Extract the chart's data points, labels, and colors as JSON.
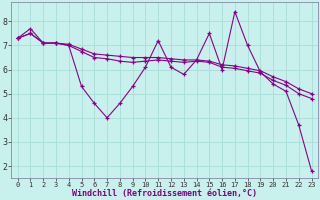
{
  "xlabel": "Windchill (Refroidissement éolien,°C)",
  "x_ticks": [
    0,
    1,
    2,
    3,
    4,
    5,
    6,
    7,
    8,
    9,
    10,
    11,
    12,
    13,
    14,
    15,
    16,
    17,
    18,
    19,
    20,
    21,
    22,
    23
  ],
  "ylim": [
    1.5,
    8.8
  ],
  "xlim": [
    -0.5,
    23.5
  ],
  "yticks": [
    2,
    3,
    4,
    5,
    6,
    7,
    8
  ],
  "line1_x": [
    0,
    1,
    2,
    3,
    4,
    5,
    6,
    7,
    8,
    9,
    10,
    11,
    12,
    13,
    14,
    15,
    16,
    17,
    18,
    19,
    20,
    21,
    22,
    23
  ],
  "line1_y": [
    7.3,
    7.7,
    7.1,
    7.1,
    7.0,
    5.3,
    4.6,
    4.0,
    4.6,
    5.3,
    6.1,
    7.2,
    6.1,
    5.8,
    6.4,
    7.5,
    6.0,
    8.4,
    7.0,
    5.9,
    5.4,
    5.1,
    3.7,
    1.8
  ],
  "line2_x": [
    0,
    1,
    2,
    3,
    4,
    5,
    6,
    7,
    8,
    9,
    10,
    11,
    12,
    13,
    14,
    15,
    16,
    17,
    18,
    19,
    20,
    21,
    22,
    23
  ],
  "line2_y": [
    7.3,
    7.5,
    7.1,
    7.1,
    7.05,
    6.85,
    6.65,
    6.6,
    6.55,
    6.5,
    6.5,
    6.5,
    6.45,
    6.4,
    6.4,
    6.35,
    6.2,
    6.15,
    6.05,
    5.95,
    5.7,
    5.5,
    5.2,
    5.0
  ],
  "line3_x": [
    0,
    1,
    2,
    3,
    4,
    5,
    6,
    7,
    8,
    9,
    10,
    11,
    12,
    13,
    14,
    15,
    16,
    17,
    18,
    19,
    20,
    21,
    22,
    23
  ],
  "line3_y": [
    7.3,
    7.5,
    7.1,
    7.1,
    7.0,
    6.75,
    6.5,
    6.45,
    6.35,
    6.3,
    6.35,
    6.4,
    6.35,
    6.3,
    6.35,
    6.3,
    6.1,
    6.05,
    5.95,
    5.85,
    5.55,
    5.35,
    5.0,
    4.8
  ],
  "line_color": "#8b008b",
  "bg_color": "#c8f0ec",
  "grid_color": "#aaddd8",
  "marker": "+",
  "linewidth": 0.8,
  "marker_size": 3.5,
  "xlabel_color": "#800080",
  "xlabel_fontsize": 6.0,
  "tick_fontsize_x": 5.0,
  "tick_fontsize_y": 6.0
}
